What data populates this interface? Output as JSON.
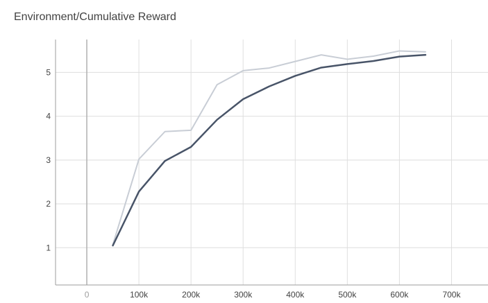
{
  "chart_data": {
    "type": "line",
    "title": "Environment/Cumulative Reward",
    "xlabel": "",
    "ylabel": "",
    "xlim": [
      -60000,
      770000
    ],
    "ylim": [
      0.15,
      5.75
    ],
    "grid": true,
    "x_ticks": [
      0,
      100000,
      200000,
      300000,
      400000,
      500000,
      600000,
      700000
    ],
    "x_tick_labels": [
      "0",
      "100k",
      "200k",
      "300k",
      "400k",
      "500k",
      "600k",
      "700k"
    ],
    "y_ticks": [
      1,
      2,
      3,
      4,
      5
    ],
    "y_tick_labels": [
      "1",
      "2",
      "3",
      "4",
      "5"
    ],
    "series": [
      {
        "color": "#c8cdd5",
        "x": [
          50000,
          100000,
          150000,
          200000,
          250000,
          300000,
          350000,
          400000,
          450000,
          500000,
          550000,
          600000,
          650000
        ],
        "values": [
          1.07,
          3.02,
          3.65,
          3.68,
          4.72,
          5.04,
          5.1,
          5.25,
          5.4,
          5.3,
          5.37,
          5.49,
          5.47
        ]
      },
      {
        "color": "#485468",
        "x": [
          50000,
          100000,
          150000,
          200000,
          250000,
          300000,
          350000,
          400000,
          450000,
          500000,
          550000,
          600000,
          650000
        ],
        "values": [
          1.05,
          2.28,
          2.98,
          3.3,
          3.92,
          4.39,
          4.68,
          4.92,
          5.11,
          5.19,
          5.26,
          5.36,
          5.4
        ]
      }
    ]
  }
}
